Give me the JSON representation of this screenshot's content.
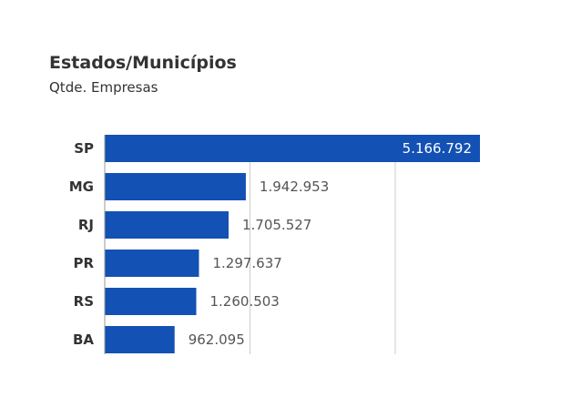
{
  "header": {
    "title": "Estados/Municípios",
    "subtitle": "Qtde. Empresas"
  },
  "colors": {
    "bar": "#1351b4",
    "grid": "#cccccc",
    "axis": "#999999"
  },
  "chart_data": {
    "type": "bar",
    "orientation": "horizontal",
    "categories": [
      "SP",
      "MG",
      "RJ",
      "PR",
      "RS",
      "BA"
    ],
    "values": [
      5166792,
      1942953,
      1705527,
      1297637,
      1260503,
      962095
    ],
    "value_labels": [
      "5.166.792",
      "1.942.953",
      "1.705.527",
      "1.297.637",
      "1.260.503",
      "962.095"
    ],
    "title": "Estados/Municípios",
    "subtitle": "Qtde. Empresas",
    "xlim": [
      0,
      5166792
    ],
    "grid": true,
    "gridlines": [
      2000000,
      4000000
    ],
    "legend": "none"
  }
}
